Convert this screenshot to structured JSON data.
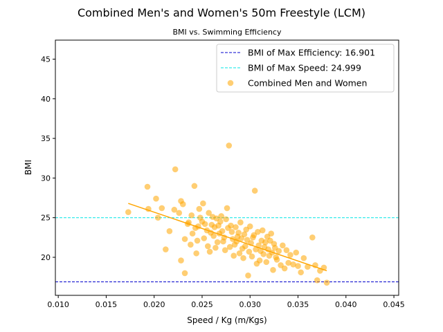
{
  "chart_data": {
    "type": "scatter",
    "title": "Combined Men's and Women's 50m Freestyle (LCM)",
    "subtitle": "BMI vs. Swimming Efficiency",
    "xlabel": "Speed / Kg (m/Kgs)",
    "ylabel": "BMI",
    "xlim": [
      0.0097,
      0.0455
    ],
    "ylim": [
      15.2,
      47.4
    ],
    "x_ticks": [
      "0.010",
      "0.015",
      "0.020",
      "0.025",
      "0.030",
      "0.035",
      "0.040",
      "0.045"
    ],
    "y_ticks": [
      "20",
      "25",
      "30",
      "35",
      "40",
      "45"
    ],
    "grid": false,
    "legend_placement": "top-right",
    "legend": [
      {
        "label": "BMI of Max Efficiency: 16.901",
        "kind": "hline",
        "color": "#0000cc",
        "style": "dashed"
      },
      {
        "label": "BMI of Max Speed: 24.999",
        "kind": "hline",
        "color": "#00e5e5",
        "style": "dashed"
      },
      {
        "label": "Combined Men and Women",
        "kind": "scatter",
        "color": "#ffa500"
      }
    ],
    "hlines": [
      {
        "y": 16.901,
        "color": "#0000cc"
      },
      {
        "y": 24.999,
        "color": "#00e5e5"
      }
    ],
    "trendline": {
      "x": [
        0.0173,
        0.038
      ],
      "y": [
        26.8,
        18.3
      ],
      "color": "#ffa500"
    },
    "series": [
      {
        "name": "Combined Men and Women",
        "color": "#ffa500",
        "alpha": 0.55,
        "points": [
          [
            0.0173,
            25.7
          ],
          [
            0.0193,
            28.9
          ],
          [
            0.0202,
            27.4
          ],
          [
            0.0194,
            26.1
          ],
          [
            0.0204,
            25.0
          ],
          [
            0.0208,
            26.2
          ],
          [
            0.0212,
            21.0
          ],
          [
            0.0216,
            23.3
          ],
          [
            0.0222,
            31.1
          ],
          [
            0.0221,
            26.0
          ],
          [
            0.0228,
            27.1
          ],
          [
            0.0226,
            25.6
          ],
          [
            0.023,
            26.7
          ],
          [
            0.0228,
            19.6
          ],
          [
            0.0232,
            18.0
          ],
          [
            0.0232,
            22.3
          ],
          [
            0.0236,
            24.4
          ],
          [
            0.0242,
            29.0
          ],
          [
            0.024,
            23.0
          ],
          [
            0.0238,
            21.6
          ],
          [
            0.0245,
            22.1
          ],
          [
            0.0248,
            25.0
          ],
          [
            0.025,
            24.5
          ],
          [
            0.0251,
            26.8
          ],
          [
            0.0244,
            20.5
          ],
          [
            0.0255,
            23.4
          ],
          [
            0.0257,
            25.6
          ],
          [
            0.026,
            24.1
          ],
          [
            0.0262,
            22.7
          ],
          [
            0.0264,
            21.2
          ],
          [
            0.0265,
            24.9
          ],
          [
            0.0268,
            23.0
          ],
          [
            0.027,
            25.2
          ],
          [
            0.0272,
            22.0
          ],
          [
            0.0274,
            20.9
          ],
          [
            0.0276,
            26.2
          ],
          [
            0.0278,
            34.1
          ],
          [
            0.028,
            24.0
          ],
          [
            0.0282,
            22.3
          ],
          [
            0.0284,
            21.6
          ],
          [
            0.0285,
            23.8
          ],
          [
            0.0287,
            22.6
          ],
          [
            0.0289,
            20.5
          ],
          [
            0.029,
            24.4
          ],
          [
            0.0292,
            21.1
          ],
          [
            0.0294,
            22.9
          ],
          [
            0.0296,
            23.5
          ],
          [
            0.0298,
            17.7
          ],
          [
            0.0299,
            20.7
          ],
          [
            0.0301,
            21.8
          ],
          [
            0.0303,
            22.5
          ],
          [
            0.0305,
            28.4
          ],
          [
            0.0306,
            21.0
          ],
          [
            0.0308,
            23.2
          ],
          [
            0.031,
            19.6
          ],
          [
            0.0312,
            22.1
          ],
          [
            0.0314,
            20.4
          ],
          [
            0.0316,
            21.9
          ],
          [
            0.0318,
            22.6
          ],
          [
            0.032,
            20.2
          ],
          [
            0.0322,
            23.0
          ],
          [
            0.0324,
            18.4
          ],
          [
            0.0326,
            21.2
          ],
          [
            0.0328,
            19.7
          ],
          [
            0.033,
            20.8
          ],
          [
            0.0332,
            19.0
          ],
          [
            0.0334,
            21.5
          ],
          [
            0.0336,
            18.6
          ],
          [
            0.0338,
            20.9
          ],
          [
            0.034,
            19.3
          ],
          [
            0.0342,
            20.3
          ],
          [
            0.0345,
            19.1
          ],
          [
            0.0348,
            20.6
          ],
          [
            0.035,
            18.9
          ],
          [
            0.0353,
            18.1
          ],
          [
            0.0356,
            19.9
          ],
          [
            0.036,
            18.8
          ],
          [
            0.0365,
            22.5
          ],
          [
            0.0368,
            19.0
          ],
          [
            0.037,
            17.1
          ],
          [
            0.0373,
            18.3
          ],
          [
            0.0377,
            18.7
          ],
          [
            0.038,
            16.8
          ],
          [
            0.0246,
            23.9
          ],
          [
            0.0253,
            24.2
          ],
          [
            0.0259,
            23.1
          ],
          [
            0.0263,
            23.8
          ],
          [
            0.0266,
            21.9
          ],
          [
            0.0269,
            24.5
          ],
          [
            0.0271,
            23.3
          ],
          [
            0.0273,
            22.5
          ],
          [
            0.0277,
            23.7
          ],
          [
            0.0279,
            21.3
          ],
          [
            0.0281,
            23.2
          ],
          [
            0.0283,
            20.2
          ],
          [
            0.0286,
            22.0
          ],
          [
            0.0288,
            23.1
          ],
          [
            0.0291,
            22.4
          ],
          [
            0.0293,
            19.9
          ],
          [
            0.0295,
            21.4
          ],
          [
            0.0297,
            22.2
          ],
          [
            0.03,
            23.9
          ],
          [
            0.0302,
            20.1
          ],
          [
            0.0304,
            22.8
          ],
          [
            0.0307,
            19.2
          ],
          [
            0.0309,
            21.5
          ],
          [
            0.0311,
            20.8
          ],
          [
            0.0313,
            23.4
          ],
          [
            0.0315,
            21.3
          ],
          [
            0.0317,
            19.4
          ],
          [
            0.0319,
            21.0
          ],
          [
            0.0321,
            22.1
          ],
          [
            0.0323,
            20.6
          ],
          [
            0.0325,
            21.7
          ],
          [
            0.0327,
            20.0
          ],
          [
            0.0252,
            22.4
          ],
          [
            0.0256,
            21.4
          ],
          [
            0.0261,
            25.1
          ],
          [
            0.0267,
            24.0
          ],
          [
            0.0275,
            24.8
          ],
          [
            0.0258,
            20.7
          ],
          [
            0.0247,
            26.1
          ],
          [
            0.0239,
            25.3
          ],
          [
            0.0235,
            24.2
          ],
          [
            0.0243,
            23.7
          ]
        ]
      }
    ]
  }
}
